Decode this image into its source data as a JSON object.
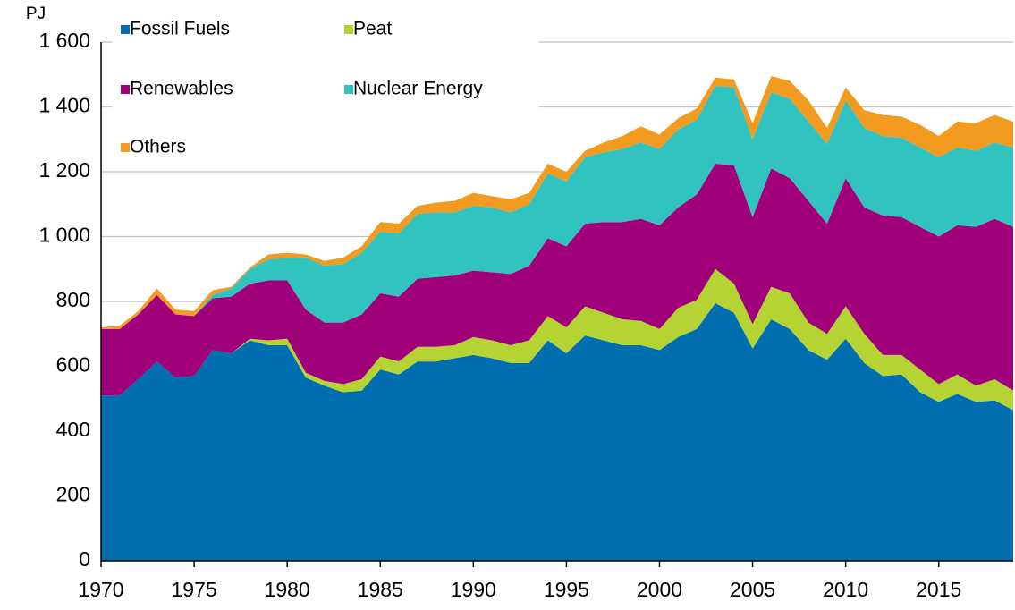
{
  "chart_data": {
    "type": "stacked-area",
    "y_label": "PJ",
    "x": [
      1970,
      1971,
      1972,
      1973,
      1974,
      1975,
      1976,
      1977,
      1978,
      1979,
      1980,
      1981,
      1982,
      1983,
      1984,
      1985,
      1986,
      1987,
      1988,
      1989,
      1990,
      1991,
      1992,
      1993,
      1994,
      1995,
      1996,
      1997,
      1998,
      1999,
      2000,
      2001,
      2002,
      2003,
      2004,
      2005,
      2006,
      2007,
      2008,
      2009,
      2010,
      2011,
      2012,
      2013,
      2014,
      2015,
      2016,
      2017,
      2018,
      2019
    ],
    "xlim": [
      1970,
      2019
    ],
    "xticks": [
      1970,
      1975,
      1980,
      1985,
      1990,
      1995,
      2000,
      2005,
      2010,
      2015
    ],
    "ylim": [
      0,
      1600
    ],
    "yticks": [
      0,
      200,
      400,
      600,
      800,
      {
        "value": 1000,
        "label": "1 000"
      },
      {
        "value": 1200,
        "label": "1 200"
      },
      {
        "value": 1400,
        "label": "1 400"
      },
      {
        "value": 1600,
        "label": "1 600"
      }
    ],
    "grid": true,
    "series": [
      {
        "name": "Fossil Fuels",
        "color": "#006eaf",
        "values": [
          510,
          510,
          560,
          615,
          565,
          570,
          650,
          640,
          680,
          665,
          665,
          565,
          540,
          520,
          525,
          590,
          575,
          615,
          615,
          625,
          635,
          625,
          610,
          610,
          680,
          640,
          695,
          680,
          665,
          665,
          650,
          690,
          715,
          795,
          765,
          655,
          745,
          715,
          650,
          620,
          685,
          610,
          570,
          575,
          520,
          490,
          515,
          490,
          495,
          465
        ]
      },
      {
        "name": "Peat",
        "color": "#b6d334",
        "values": [
          0,
          0,
          0,
          0,
          0,
          0,
          0,
          0,
          5,
          15,
          20,
          15,
          15,
          25,
          35,
          40,
          40,
          45,
          45,
          40,
          55,
          55,
          55,
          70,
          75,
          80,
          90,
          85,
          80,
          75,
          65,
          90,
          90,
          105,
          90,
          75,
          100,
          110,
          85,
          80,
          100,
          90,
          65,
          60,
          70,
          55,
          60,
          50,
          65,
          60
        ]
      },
      {
        "name": "Renewables",
        "color": "#a0007a",
        "values": [
          205,
          205,
          200,
          205,
          195,
          185,
          160,
          175,
          170,
          185,
          180,
          195,
          180,
          190,
          200,
          195,
          200,
          210,
          215,
          215,
          205,
          210,
          220,
          230,
          240,
          250,
          255,
          280,
          300,
          315,
          320,
          310,
          325,
          325,
          365,
          330,
          365,
          355,
          375,
          340,
          395,
          390,
          430,
          425,
          440,
          455,
          460,
          490,
          495,
          505
        ]
      },
      {
        "name": "Nuclear Energy",
        "color": "#30c3bf",
        "values": [
          0,
          0,
          0,
          0,
          0,
          0,
          10,
          25,
          45,
          65,
          70,
          160,
          175,
          180,
          190,
          190,
          195,
          200,
          200,
          195,
          200,
          200,
          190,
          190,
          200,
          200,
          205,
          215,
          225,
          235,
          235,
          240,
          230,
          240,
          240,
          240,
          235,
          245,
          245,
          245,
          240,
          245,
          245,
          245,
          245,
          245,
          240,
          235,
          235,
          245
        ]
      },
      {
        "name": "Others",
        "color": "#f39a20",
        "values": [
          5,
          10,
          10,
          20,
          15,
          15,
          15,
          5,
          5,
          15,
          15,
          10,
          15,
          20,
          20,
          30,
          30,
          25,
          30,
          35,
          40,
          35,
          40,
          35,
          30,
          30,
          20,
          30,
          40,
          50,
          45,
          35,
          35,
          25,
          25,
          50,
          50,
          55,
          65,
          50,
          40,
          55,
          65,
          65,
          70,
          65,
          80,
          85,
          85,
          80
        ]
      }
    ]
  }
}
